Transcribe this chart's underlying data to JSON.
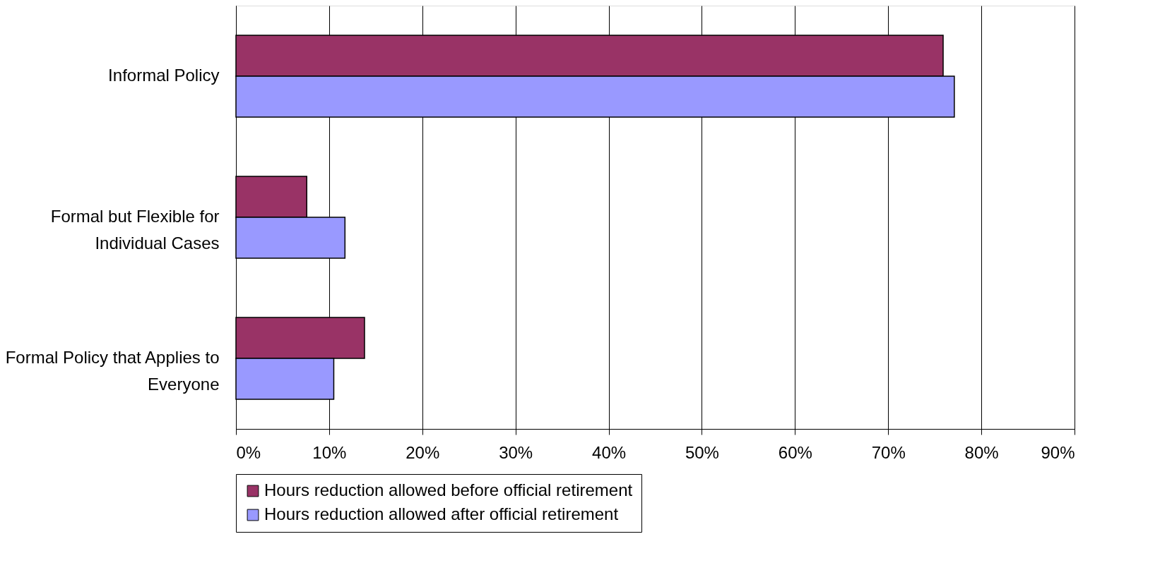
{
  "chart_data": {
    "type": "bar",
    "orientation": "horizontal",
    "categories": [
      "Informal Policy",
      "Formal but Flexible for Individual Cases",
      "Formal Policy that Applies to Everyone"
    ],
    "series": [
      {
        "name": "Hours reduction allowed before official retirement",
        "color": "#993366",
        "values": [
          75.9,
          7.6,
          13.8
        ]
      },
      {
        "name": "Hours reduction allowed after official retirement",
        "color": "#9999ff",
        "values": [
          77.1,
          11.7,
          10.5
        ]
      }
    ],
    "xlim": [
      0,
      90
    ],
    "xticks": [
      {
        "value": 0,
        "label": "0%"
      },
      {
        "value": 10,
        "label": "10%"
      },
      {
        "value": 20,
        "label": "20%"
      },
      {
        "value": 30,
        "label": "30%"
      },
      {
        "value": 40,
        "label": "40%"
      },
      {
        "value": 50,
        "label": "50%"
      },
      {
        "value": 60,
        "label": "60%"
      },
      {
        "value": 70,
        "label": "70%"
      },
      {
        "value": 80,
        "label": "80%"
      },
      {
        "value": 90,
        "label": "90%"
      }
    ],
    "grid": "x",
    "legend": "bottom"
  }
}
